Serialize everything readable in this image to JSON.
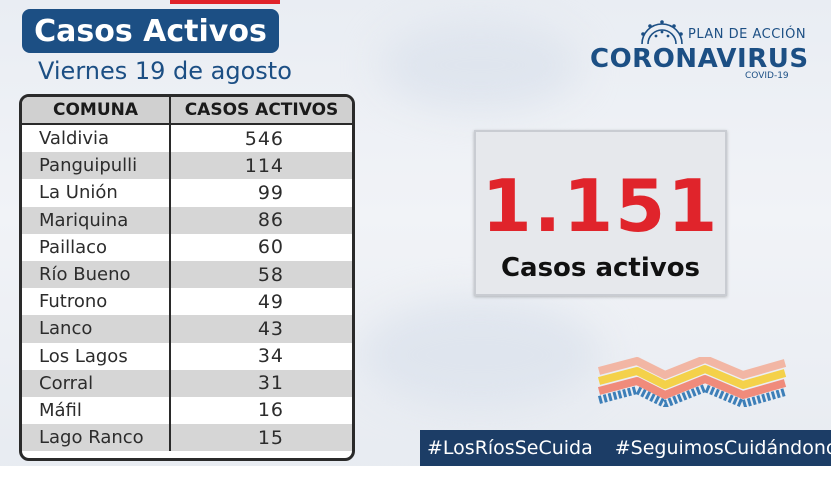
{
  "header": {
    "title": "Casos Activos",
    "date": "Viernes 19 de agosto"
  },
  "table": {
    "headers": [
      "COMUNA",
      "CASOS ACTIVOS"
    ],
    "rows": [
      {
        "comuna": "Valdivia",
        "casos": "546"
      },
      {
        "comuna": "Panguipulli",
        "casos": "114"
      },
      {
        "comuna": "La Unión",
        "casos": "99"
      },
      {
        "comuna": "Mariquina",
        "casos": "86"
      },
      {
        "comuna": "Paillaco",
        "casos": "60"
      },
      {
        "comuna": "Río Bueno",
        "casos": "58"
      },
      {
        "comuna": "Futrono",
        "casos": "49"
      },
      {
        "comuna": "Lanco",
        "casos": "43"
      },
      {
        "comuna": "Los Lagos",
        "casos": "34"
      },
      {
        "comuna": "Corral",
        "casos": "31"
      },
      {
        "comuna": "Máfil",
        "casos": "16"
      },
      {
        "comuna": "Lago Ranco",
        "casos": "15"
      }
    ]
  },
  "logo": {
    "plan": "PLAN DE ACCIÓN",
    "main": "CORONAVIRUS",
    "sub": "COVID-19",
    "icon": "virus-icon"
  },
  "total": {
    "value": "1.151",
    "label": "Casos activos"
  },
  "hashtags": [
    "#LosRíosSeCuida",
    "#SeguimosCuidándonos"
  ],
  "colors": {
    "brand_blue": "#1c4f84",
    "accent_red": "#e0242b",
    "hashtag_bg": "#1c3d66"
  }
}
